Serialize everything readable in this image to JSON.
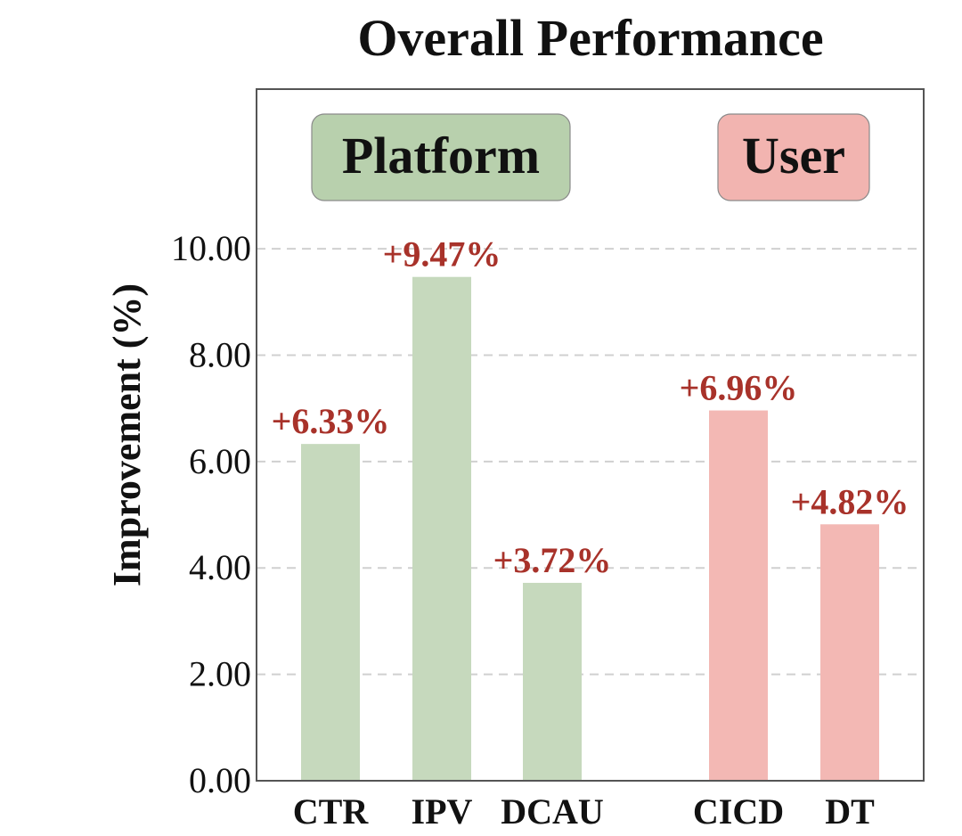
{
  "colors": {
    "platform_bar": "#c6d9bd",
    "platform_box": "#b8d0ad",
    "user_bar": "#f3b8b4",
    "user_box": "#f2b4b0",
    "data_label": "#a8322a",
    "grid": "#d0d0d0",
    "axis": "#555555"
  },
  "chart_data": {
    "type": "bar",
    "title": "Overall Performance",
    "xlabel": "",
    "ylabel": "Improvement (%)",
    "ylim": [
      0,
      13
    ],
    "yticks": [
      0,
      2,
      4,
      6,
      8,
      10
    ],
    "ytick_labels": [
      "0.00",
      "2.00",
      "4.00",
      "6.00",
      "8.00",
      "10.00"
    ],
    "grid": "horizontal dashed",
    "groups": [
      {
        "name": "Platform",
        "color_key": "platform_bar",
        "box_color_key": "platform_box",
        "categories": [
          "CTR",
          "IPV",
          "DCAU"
        ],
        "values": [
          6.33,
          9.47,
          3.72
        ],
        "labels": [
          "+6.33%",
          "+9.47%",
          "+3.72%"
        ]
      },
      {
        "name": "User",
        "color_key": "user_bar",
        "box_color_key": "user_box",
        "categories": [
          "CICD",
          "DT"
        ],
        "values": [
          6.96,
          4.82
        ],
        "labels": [
          "+6.96%",
          "+4.82%"
        ]
      }
    ]
  }
}
